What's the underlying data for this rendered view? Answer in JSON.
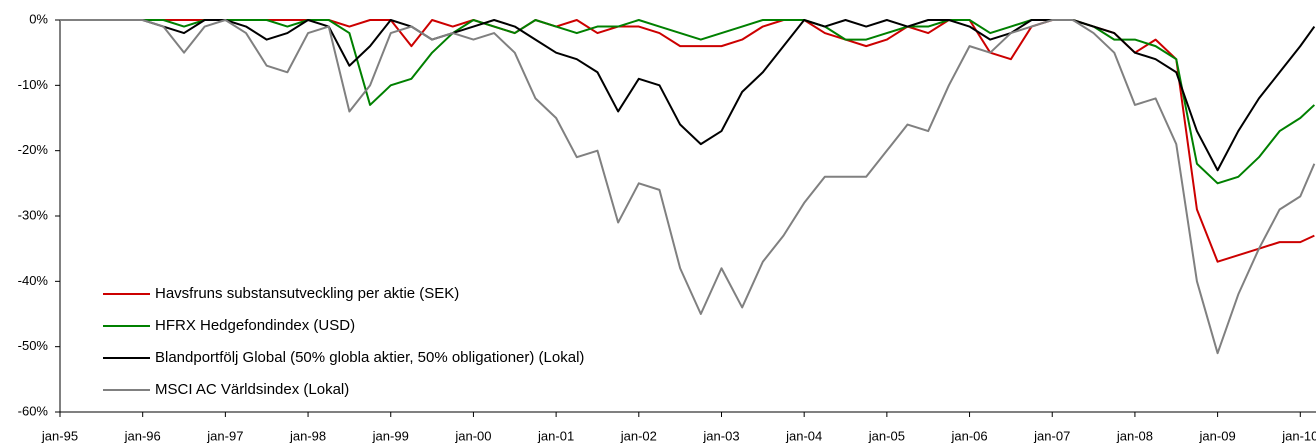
{
  "chart_data": {
    "type": "line",
    "x": [
      1995,
      1995.25,
      1995.5,
      1995.75,
      1996,
      1996.25,
      1996.5,
      1996.75,
      1997,
      1997.25,
      1997.5,
      1997.75,
      1998,
      1998.25,
      1998.5,
      1998.75,
      1999,
      1999.25,
      1999.5,
      1999.75,
      2000,
      2000.25,
      2000.5,
      2000.75,
      2001,
      2001.25,
      2001.5,
      2001.75,
      2002,
      2002.25,
      2002.5,
      2002.75,
      2003,
      2003.25,
      2003.5,
      2003.75,
      2004,
      2004.25,
      2004.5,
      2004.75,
      2005,
      2005.25,
      2005.5,
      2005.75,
      2006,
      2006.25,
      2006.5,
      2006.75,
      2007,
      2007.25,
      2007.5,
      2007.75,
      2008,
      2008.25,
      2008.5,
      2008.75,
      2009,
      2009.25,
      2009.5,
      2009.75,
      2010,
      2010.17
    ],
    "series": [
      {
        "name": "Havsfruns substansutveckling per aktie (SEK)",
        "color": "#cc0000",
        "values": [
          0,
          0,
          0,
          0,
          0,
          0,
          0,
          0,
          0,
          0,
          0,
          0,
          0,
          0,
          -1,
          0,
          0,
          -4,
          0,
          -1,
          0,
          -1,
          -2,
          0,
          -1,
          0,
          -2,
          -1,
          -1,
          -2,
          -4,
          -4,
          -4,
          -3,
          -1,
          0,
          0,
          -2,
          -3,
          -4,
          -3,
          -1,
          -2,
          0,
          0,
          -5,
          -6,
          -1,
          0,
          0,
          -1,
          -2,
          -5,
          -3,
          -6,
          -29,
          -37,
          -36,
          -35,
          -34,
          -34,
          -33
        ]
      },
      {
        "name": "HFRX Hedgefondindex (USD)",
        "color": "#008000",
        "values": [
          0,
          0,
          0,
          0,
          0,
          0,
          -1,
          0,
          0,
          0,
          0,
          -1,
          0,
          0,
          -2,
          -13,
          -10,
          -9,
          -5,
          -2,
          0,
          -1,
          -2,
          0,
          -1,
          -2,
          -1,
          -1,
          0,
          -1,
          -2,
          -3,
          -2,
          -1,
          0,
          0,
          0,
          -1,
          -3,
          -3,
          -2,
          -1,
          -1,
          0,
          0,
          -2,
          -1,
          0,
          0,
          0,
          -1,
          -3,
          -3,
          -4,
          -6,
          -22,
          -25,
          -24,
          -21,
          -17,
          -15,
          -13
        ]
      },
      {
        "name": "Blandportfölj Global (50% globla aktier, 50% obligationer) (Lokal)",
        "color": "#000000",
        "values": [
          0,
          0,
          0,
          0,
          0,
          -1,
          -2,
          0,
          0,
          -1,
          -3,
          -2,
          0,
          -1,
          -7,
          -4,
          0,
          -1,
          -3,
          -2,
          -1,
          0,
          -1,
          -3,
          -5,
          -6,
          -8,
          -14,
          -9,
          -10,
          -16,
          -19,
          -17,
          -11,
          -8,
          -4,
          0,
          -1,
          0,
          -1,
          0,
          -1,
          0,
          0,
          -1,
          -3,
          -2,
          0,
          0,
          0,
          -1,
          -2,
          -5,
          -6,
          -8,
          -17,
          -23,
          -17,
          -12,
          -8,
          -4,
          -1
        ]
      },
      {
        "name": "MSCI AC Världsindex (Lokal)",
        "color": "#808080",
        "values": [
          0,
          0,
          0,
          0,
          0,
          -1,
          -5,
          -1,
          0,
          -2,
          -7,
          -8,
          -2,
          -1,
          -14,
          -10,
          -2,
          -1,
          -3,
          -2,
          -3,
          -2,
          -5,
          -12,
          -15,
          -21,
          -20,
          -31,
          -25,
          -26,
          -38,
          -45,
          -38,
          -44,
          -37,
          -33,
          -28,
          -24,
          -24,
          -24,
          -20,
          -16,
          -17,
          -10,
          -4,
          -5,
          -2,
          -1,
          0,
          0,
          -2,
          -5,
          -13,
          -12,
          -19,
          -40,
          -51,
          -42,
          -35,
          -29,
          -27,
          -22
        ]
      }
    ],
    "xlim": [
      1995,
      2010.19
    ],
    "xticks": [
      {
        "value": 1995,
        "label": "jan-95"
      },
      {
        "value": 1996,
        "label": "jan-96"
      },
      {
        "value": 1997,
        "label": "jan-97"
      },
      {
        "value": 1998,
        "label": "jan-98"
      },
      {
        "value": 1999,
        "label": "jan-99"
      },
      {
        "value": 2000,
        "label": "jan-00"
      },
      {
        "value": 2001,
        "label": "jan-01"
      },
      {
        "value": 2002,
        "label": "jan-02"
      },
      {
        "value": 2003,
        "label": "jan-03"
      },
      {
        "value": 2004,
        "label": "jan-04"
      },
      {
        "value": 2005,
        "label": "jan-05"
      },
      {
        "value": 2006,
        "label": "jan-06"
      },
      {
        "value": 2007,
        "label": "jan-07"
      },
      {
        "value": 2008,
        "label": "jan-08"
      },
      {
        "value": 2009,
        "label": "jan-09"
      },
      {
        "value": 2010,
        "label": "jan-10"
      }
    ],
    "ylim": [
      -60,
      0
    ],
    "yticks": [
      {
        "value": 0,
        "label": "0%"
      },
      {
        "value": -10,
        "label": "-10%"
      },
      {
        "value": -20,
        "label": "-20%"
      },
      {
        "value": -30,
        "label": "-30%"
      },
      {
        "value": -40,
        "label": "-40%"
      },
      {
        "value": -50,
        "label": "-50%"
      },
      {
        "value": -60,
        "label": "-60%"
      }
    ],
    "legend": "lower-left"
  }
}
